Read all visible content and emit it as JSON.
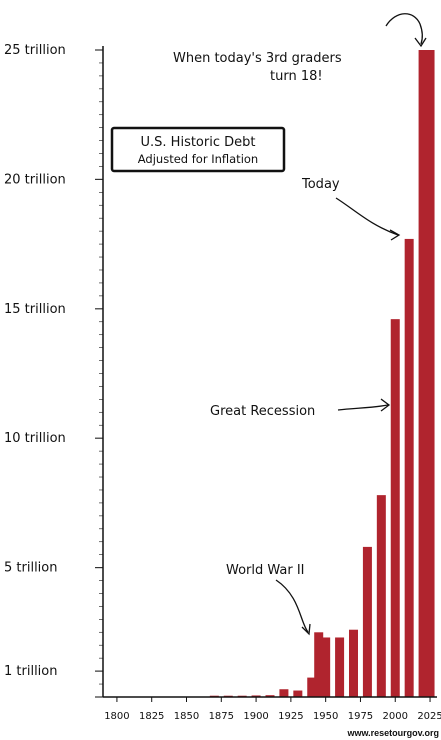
{
  "chart_data": {
    "type": "bar",
    "title": [
      "U.S. Historic Debt",
      "Adjusted for Inflation"
    ],
    "y_ticks": [
      {
        "value": 1,
        "label": "1 trillion"
      },
      {
        "value": 5,
        "label": "5 trillion"
      },
      {
        "value": 10,
        "label": "10 trillion"
      },
      {
        "value": 15,
        "label": "15 trillion"
      },
      {
        "value": 20,
        "label": "20 trillion"
      },
      {
        "value": 25,
        "label": "25 trillion"
      }
    ],
    "ylim": [
      0,
      25
    ],
    "xlim": [
      1790,
      2030
    ],
    "x_ticks": [
      1800,
      1825,
      1850,
      1875,
      1900,
      1925,
      1950,
      1975,
      2000,
      2025
    ],
    "x": [
      1870,
      1880,
      1890,
      1900,
      1910,
      1920,
      1930,
      1940,
      1945,
      1950,
      1960,
      1970,
      1980,
      1990,
      2000,
      2010,
      2020,
      2025
    ],
    "values": [
      0.05,
      0.05,
      0.05,
      0.06,
      0.07,
      0.3,
      0.25,
      0.75,
      2.5,
      2.3,
      2.3,
      2.6,
      5.8,
      7.8,
      14.6,
      17.7,
      25.0,
      25.0
    ],
    "color": "#b0242e",
    "annotations": [
      {
        "text": "World War II"
      },
      {
        "text": "Great Recession"
      },
      {
        "text": "Today"
      },
      {
        "text": "When today's 3rd graders"
      },
      {
        "text": "turn 18!"
      }
    ],
    "source": "www.resetourgov.org"
  }
}
